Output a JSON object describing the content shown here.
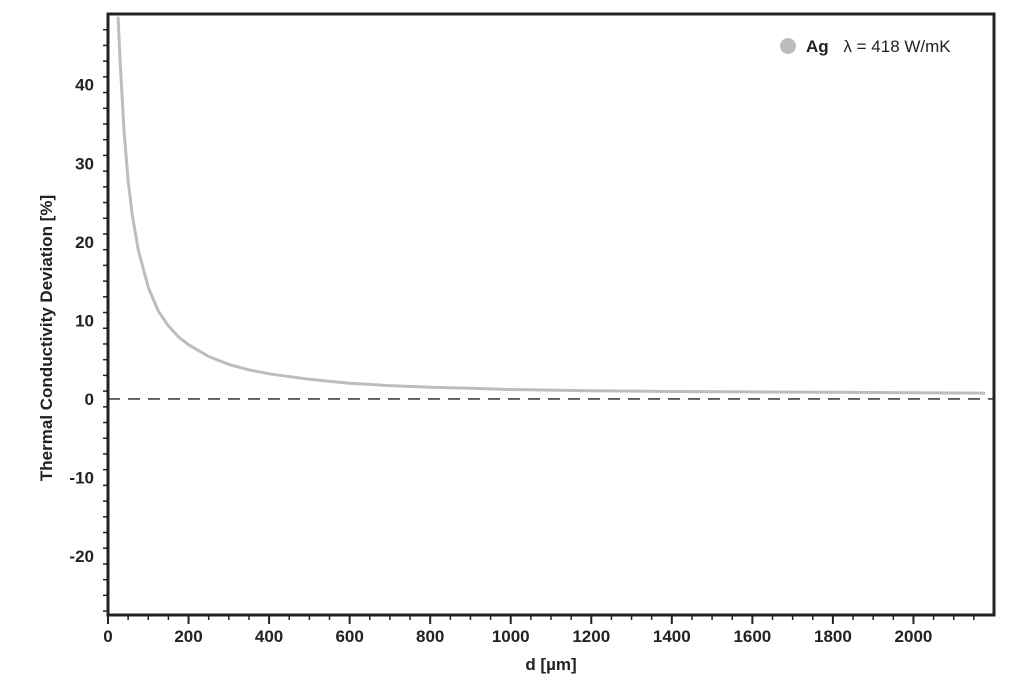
{
  "chart_data": {
    "type": "line",
    "title": "",
    "xlabel": "d [µm]",
    "ylabel": "Thermal Conductivity Deviation [%]",
    "xlim": [
      0,
      2200
    ],
    "ylim": [
      -27.5,
      49
    ],
    "x_ticks": [
      0,
      200,
      400,
      600,
      800,
      1000,
      1200,
      1400,
      1600,
      1800,
      2000
    ],
    "y_ticks": [
      -20,
      -10,
      0,
      10,
      20,
      30,
      40
    ],
    "reference_line": {
      "y": 0,
      "style": "dashed",
      "color": "#222222"
    },
    "legend": {
      "position": "top-right",
      "marker_label": "Ag",
      "text": "λ = 418 W/mK"
    },
    "series": [
      {
        "name": "Ag",
        "color": "#bdbdbd",
        "x": [
          25,
          30,
          40,
          50,
          60,
          75,
          100,
          125,
          150,
          175,
          200,
          250,
          300,
          350,
          400,
          500,
          600,
          700,
          800,
          900,
          1000,
          1200,
          1400,
          1600,
          1800,
          2000,
          2175
        ],
        "y": [
          48.5,
          43.0,
          34.0,
          27.8,
          23.5,
          19.0,
          14.2,
          11.2,
          9.3,
          7.9,
          6.9,
          5.4,
          4.4,
          3.7,
          3.2,
          2.5,
          2.0,
          1.7,
          1.5,
          1.35,
          1.2,
          1.05,
          0.95,
          0.9,
          0.85,
          0.8,
          0.75
        ]
      }
    ]
  }
}
